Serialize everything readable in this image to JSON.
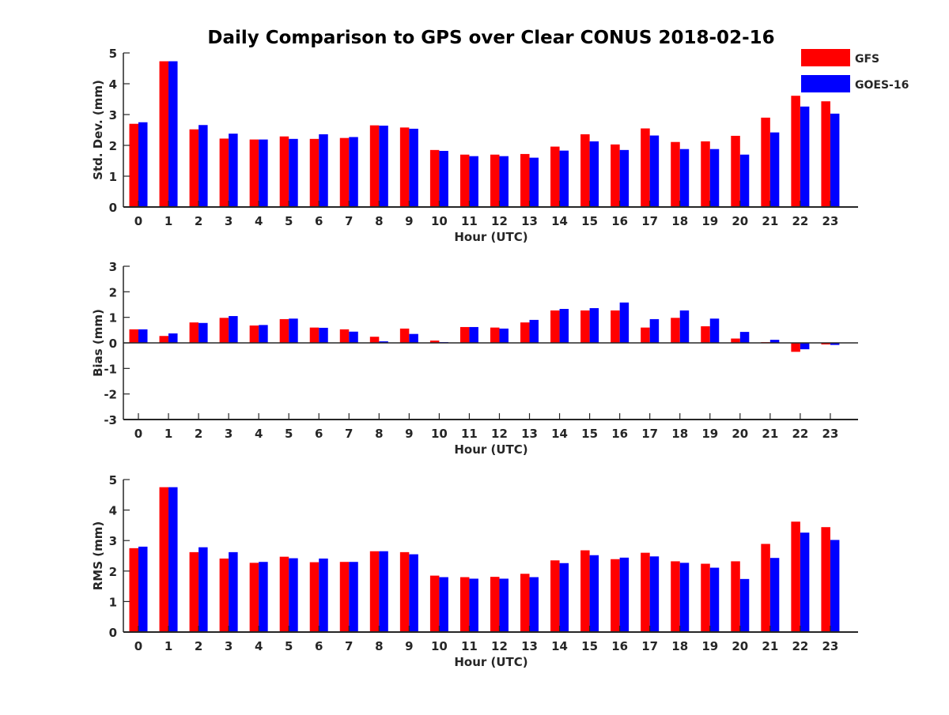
{
  "title": "Daily Comparison to GPS over Clear CONUS 2018-02-16",
  "legend": [
    {
      "label": "GFS",
      "color": "#ff0000"
    },
    {
      "label": "GOES-16",
      "color": "#0000ff"
    }
  ],
  "chart_data": [
    {
      "type": "bar",
      "xlabel": "Hour (UTC)",
      "ylabel": "Std. Dev. (mm)",
      "ylim": [
        0,
        5
      ],
      "yticks": [
        "0",
        "1",
        "2",
        "3",
        "4",
        "5"
      ],
      "categories": [
        "0",
        "1",
        "2",
        "3",
        "4",
        "5",
        "6",
        "7",
        "8",
        "9",
        "10",
        "11",
        "12",
        "13",
        "14",
        "15",
        "16",
        "17",
        "18",
        "19",
        "20",
        "21",
        "22",
        "23"
      ],
      "series": [
        {
          "name": "GFS",
          "values": [
            2.7,
            4.73,
            2.52,
            2.22,
            2.19,
            2.29,
            2.21,
            2.24,
            2.65,
            2.58,
            1.85,
            1.7,
            1.7,
            1.72,
            1.96,
            2.36,
            2.03,
            2.55,
            2.11,
            2.13,
            2.31,
            2.9,
            3.61,
            3.43
          ]
        },
        {
          "name": "GOES-16",
          "values": [
            2.75,
            4.73,
            2.66,
            2.38,
            2.19,
            2.21,
            2.36,
            2.27,
            2.64,
            2.54,
            1.82,
            1.65,
            1.65,
            1.6,
            1.83,
            2.13,
            1.85,
            2.32,
            1.88,
            1.88,
            1.7,
            2.42,
            3.26,
            3.03
          ]
        }
      ]
    },
    {
      "type": "bar",
      "xlabel": "Hour (UTC)",
      "ylabel": "Bias (mm)",
      "ylim": [
        -3,
        3
      ],
      "yticks": [
        "-3",
        "-2",
        "-1",
        "0",
        "1",
        "2",
        "3"
      ],
      "categories": [
        "0",
        "1",
        "2",
        "3",
        "4",
        "5",
        "6",
        "7",
        "8",
        "9",
        "10",
        "11",
        "12",
        "13",
        "14",
        "15",
        "16",
        "17",
        "18",
        "19",
        "20",
        "21",
        "22",
        "23"
      ],
      "series": [
        {
          "name": "GFS",
          "values": [
            0.53,
            0.27,
            0.8,
            0.98,
            0.68,
            0.93,
            0.6,
            0.53,
            0.24,
            0.56,
            0.09,
            0.62,
            0.6,
            0.8,
            1.27,
            1.27,
            1.27,
            0.6,
            0.98,
            0.65,
            0.17,
            0.03,
            -0.35,
            -0.06
          ]
        },
        {
          "name": "GOES-16",
          "values": [
            0.53,
            0.37,
            0.78,
            1.05,
            0.7,
            0.95,
            0.59,
            0.44,
            0.06,
            0.35,
            0.03,
            0.62,
            0.56,
            0.9,
            1.33,
            1.36,
            1.58,
            0.93,
            1.27,
            0.95,
            0.43,
            0.12,
            -0.25,
            -0.08
          ]
        }
      ]
    },
    {
      "type": "bar",
      "xlabel": "Hour (UTC)",
      "ylabel": "RMS (mm)",
      "ylim": [
        0,
        5
      ],
      "yticks": [
        "0",
        "1",
        "2",
        "3",
        "4",
        "5"
      ],
      "categories": [
        "0",
        "1",
        "2",
        "3",
        "4",
        "5",
        "6",
        "7",
        "8",
        "9",
        "10",
        "11",
        "12",
        "13",
        "14",
        "15",
        "16",
        "17",
        "18",
        "19",
        "20",
        "21",
        "22",
        "23"
      ],
      "series": [
        {
          "name": "GFS",
          "values": [
            2.75,
            4.75,
            2.62,
            2.41,
            2.27,
            2.47,
            2.29,
            2.3,
            2.65,
            2.62,
            1.85,
            1.8,
            1.81,
            1.91,
            2.35,
            2.68,
            2.39,
            2.6,
            2.32,
            2.24,
            2.32,
            2.89,
            3.62,
            3.44
          ]
        },
        {
          "name": "GOES-16",
          "values": [
            2.8,
            4.75,
            2.78,
            2.62,
            2.3,
            2.42,
            2.41,
            2.3,
            2.65,
            2.55,
            1.8,
            1.75,
            1.75,
            1.8,
            2.26,
            2.52,
            2.44,
            2.48,
            2.27,
            2.11,
            1.74,
            2.43,
            3.26,
            3.02
          ]
        }
      ]
    }
  ]
}
